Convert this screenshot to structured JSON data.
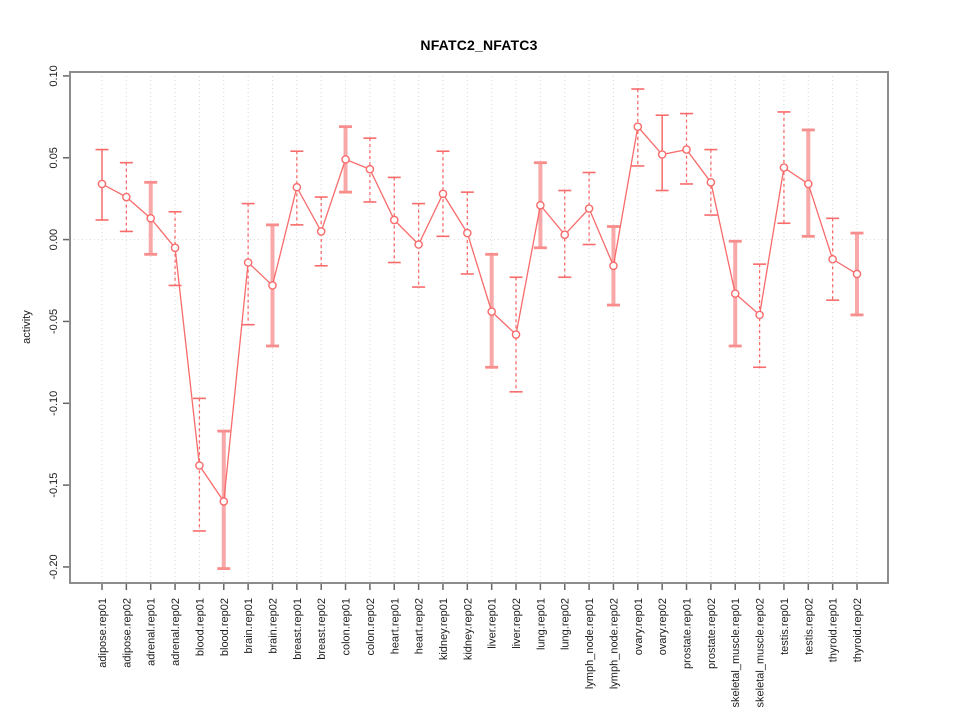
{
  "chart_data": {
    "type": "line",
    "title": "NFATC2_NFATC3",
    "xlabel": "",
    "ylabel": "activity",
    "ylim": [
      -0.2098,
      0.1024
    ],
    "yticks": [
      0.1,
      0.05,
      0.0,
      -0.05,
      -0.1,
      -0.15,
      -0.2
    ],
    "ytick_labels": [
      "0.10",
      "0.05",
      "0.00",
      "-0.05",
      "-0.10",
      "-0.15",
      "-0.20"
    ],
    "grid": true,
    "zero_line": true,
    "legend_position": "none",
    "marker": "open-circle",
    "categories": [
      "adipose.rep01",
      "adipose.rep02",
      "adrenal.rep01",
      "adrenal.rep02",
      "blood.rep01",
      "blood.rep02",
      "brain.rep01",
      "brain.rep02",
      "breast.rep01",
      "breast.rep02",
      "colon.rep01",
      "colon.rep02",
      "heart.rep01",
      "heart.rep02",
      "kidney.rep01",
      "kidney.rep02",
      "liver.rep01",
      "liver.rep02",
      "lung.rep01",
      "lung.rep02",
      "lymph_node.rep01",
      "lymph_node.rep02",
      "ovary.rep01",
      "ovary.rep02",
      "prostate.rep01",
      "prostate.rep02",
      "skeletal_muscle.rep01",
      "skeletal_muscle.rep02",
      "testis.rep01",
      "testis.rep02",
      "thyroid.rep01",
      "thyroid.rep02"
    ],
    "series": [
      {
        "name": "activity",
        "values": [
          0.034,
          0.026,
          0.013,
          -0.005,
          -0.138,
          -0.16,
          -0.014,
          -0.028,
          0.032,
          0.005,
          0.049,
          0.043,
          0.012,
          -0.003,
          0.028,
          0.004,
          -0.044,
          -0.058,
          0.021,
          0.003,
          0.019,
          -0.016,
          0.069,
          0.052,
          0.055,
          0.035,
          -0.033,
          -0.046,
          0.044,
          0.034,
          -0.012,
          -0.021
        ],
        "ci_low": [
          0.012,
          0.005,
          -0.009,
          -0.028,
          -0.178,
          -0.201,
          -0.052,
          -0.065,
          0.009,
          -0.016,
          0.029,
          0.023,
          -0.014,
          -0.029,
          0.002,
          -0.021,
          -0.078,
          -0.093,
          -0.005,
          -0.023,
          -0.003,
          -0.04,
          0.045,
          0.03,
          0.034,
          0.015,
          -0.065,
          -0.078,
          0.01,
          0.002,
          -0.037,
          -0.046
        ],
        "ci_high": [
          0.055,
          0.047,
          0.035,
          0.017,
          -0.097,
          -0.117,
          0.022,
          0.009,
          0.054,
          0.026,
          0.069,
          0.062,
          0.038,
          0.022,
          0.054,
          0.029,
          -0.009,
          -0.023,
          0.047,
          0.03,
          0.041,
          0.008,
          0.092,
          0.076,
          0.077,
          0.055,
          -0.001,
          -0.015,
          0.078,
          0.067,
          0.013,
          0.004
        ],
        "bar_styles": [
          "solid",
          "dashed",
          "thick",
          "dashed",
          "dashed",
          "thick",
          "dashed",
          "thick",
          "dashed",
          "dashed",
          "thick",
          "dashed",
          "dashed",
          "dashed",
          "dashed",
          "dashed",
          "thick",
          "dashed",
          "thick",
          "dashed",
          "dashed",
          "thick",
          "dashed",
          "solid",
          "dashed",
          "dashed",
          "thick",
          "dashed",
          "dashed",
          "thick",
          "dashed",
          "thick"
        ]
      }
    ]
  },
  "colors": {
    "line": "#f86b6b",
    "marker_stroke": "#f86b6b",
    "marker_fill": "#ffffff",
    "thick_bar": "#f8a8a8",
    "thick_cap": "#f88d8d",
    "grid": "#d6d6d6",
    "zero_line": "#dcdcdc",
    "frame": "#8c8c8c",
    "tick": "#666666",
    "text": "#1c1c1c",
    "background": "#ffffff"
  }
}
